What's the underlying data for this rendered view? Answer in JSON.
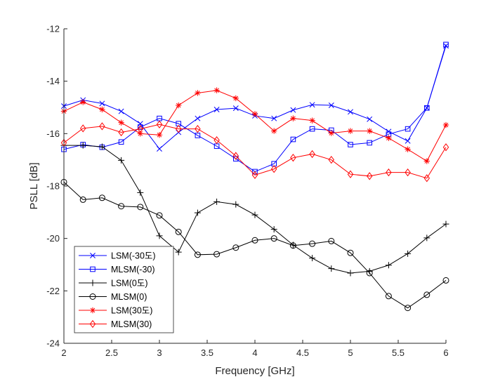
{
  "chart_data": {
    "type": "line",
    "title": "",
    "xlabel": "Frequency [GHz]",
    "ylabel": "PSLL [dB]",
    "xlim": [
      2,
      6
    ],
    "ylim": [
      -24,
      -12
    ],
    "xticks": [
      2,
      2.5,
      3,
      3.5,
      4,
      4.5,
      5,
      5.5,
      6
    ],
    "xtick_labels": [
      "2",
      "2.5",
      "3",
      "3.5",
      "4",
      "4.5",
      "5",
      "5.5",
      "6"
    ],
    "yticks": [
      -24,
      -22,
      -20,
      -18,
      -16,
      -14,
      -12
    ],
    "ytick_labels": [
      "-24",
      "-22",
      "-20",
      "-18",
      "-16",
      "-14",
      "-12"
    ],
    "grid": false,
    "legend_position": "bottom-left",
    "x": [
      2.0,
      2.2,
      2.4,
      2.6,
      2.8,
      3.0,
      3.2,
      3.4,
      3.6,
      3.8,
      4.0,
      4.2,
      4.4,
      4.6,
      4.8,
      5.0,
      5.2,
      5.4,
      5.6,
      5.8,
      6.0
    ],
    "series": [
      {
        "name": "LSM(-30도)",
        "color": "#0000ff",
        "marker": "x",
        "values": [
          -14.95,
          -14.72,
          -14.85,
          -15.15,
          -15.62,
          -16.58,
          -15.95,
          -15.42,
          -15.08,
          -15.03,
          -15.32,
          -15.42,
          -15.1,
          -14.9,
          -14.92,
          -15.17,
          -15.45,
          -15.92,
          -16.28,
          -15.02,
          -12.65
        ]
      },
      {
        "name": "MLSM(-30)",
        "color": "#0000ff",
        "marker": "square",
        "values": [
          -16.6,
          -16.42,
          -16.52,
          -16.32,
          -15.75,
          -15.42,
          -15.62,
          -16.07,
          -16.48,
          -16.96,
          -17.45,
          -17.15,
          -16.22,
          -15.82,
          -15.87,
          -16.42,
          -16.35,
          -16.02,
          -15.82,
          -15.02,
          -12.6
        ]
      },
      {
        "name": "LSM(0도)",
        "color": "#000000",
        "marker": "plus",
        "values": [
          -16.45,
          -16.45,
          -16.5,
          -17.02,
          -18.25,
          -19.9,
          -20.52,
          -19.02,
          -18.6,
          -18.7,
          -19.1,
          -19.65,
          -20.25,
          -20.75,
          -21.15,
          -21.32,
          -21.25,
          -21.02,
          -20.58,
          -19.98,
          -19.45
        ]
      },
      {
        "name": "MLSM(0)",
        "color": "#000000",
        "marker": "circle",
        "values": [
          -17.85,
          -18.52,
          -18.45,
          -18.77,
          -18.8,
          -19.12,
          -19.75,
          -20.62,
          -20.6,
          -20.35,
          -20.07,
          -20.0,
          -20.27,
          -20.2,
          -20.1,
          -20.55,
          -21.32,
          -22.2,
          -22.65,
          -22.15,
          -21.6
        ]
      },
      {
        "name": "LSM(30도)",
        "color": "#ff0000",
        "marker": "asterisk",
        "values": [
          -15.15,
          -14.8,
          -15.08,
          -15.58,
          -16.0,
          -16.05,
          -14.92,
          -14.45,
          -14.35,
          -14.65,
          -15.25,
          -15.9,
          -15.42,
          -15.5,
          -15.98,
          -15.9,
          -15.9,
          -16.17,
          -16.6,
          -17.05,
          -15.67
        ]
      },
      {
        "name": "MLSM(30)",
        "color": "#ff0000",
        "marker": "diamond",
        "values": [
          -16.35,
          -15.8,
          -15.72,
          -15.95,
          -15.82,
          -15.65,
          -15.82,
          -15.82,
          -16.25,
          -16.85,
          -17.58,
          -17.35,
          -16.92,
          -16.78,
          -17.0,
          -17.55,
          -17.62,
          -17.48,
          -17.48,
          -17.7,
          -16.52
        ]
      }
    ]
  }
}
